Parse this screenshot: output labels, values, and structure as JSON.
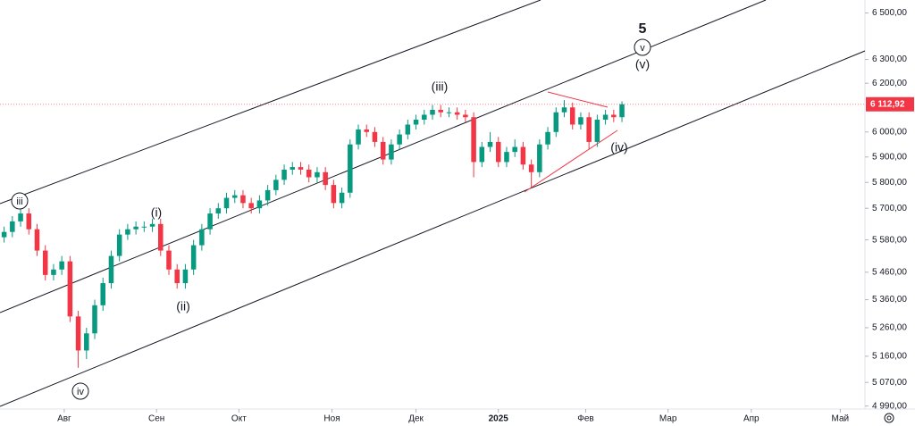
{
  "chart_data": {
    "type": "candlestick",
    "up_color": "#089981",
    "down_color": "#f23645",
    "log_scale": true,
    "open": [
      5590,
      5610,
      5650,
      5680,
      5620,
      5540,
      5450,
      5470,
      5500,
      5300,
      5180,
      5240,
      5340,
      5420,
      5520,
      5600,
      5620,
      5630,
      5630,
      5640,
      5540,
      5470,
      5420,
      5470,
      5560,
      5620,
      5680,
      5700,
      5740,
      5750,
      5720,
      5700,
      5730,
      5770,
      5810,
      5850,
      5860,
      5850,
      5820,
      5840,
      5790,
      5720,
      5760,
      5950,
      6010,
      6000,
      5960,
      5890,
      5950,
      5990,
      6030,
      6050,
      6070,
      6090,
      6080,
      6080,
      6070,
      6060,
      5880,
      5940,
      5960,
      5880,
      5920,
      5940,
      5870,
      5840,
      5950,
      6000,
      6080,
      6100,
      6030,
      6060,
      5960,
      6050,
      6070,
      6060
    ],
    "high": [
      5630,
      5670,
      5700,
      5700,
      5640,
      5560,
      5490,
      5520,
      5520,
      5320,
      5260,
      5360,
      5440,
      5540,
      5620,
      5640,
      5650,
      5650,
      5660,
      5660,
      5560,
      5490,
      5490,
      5580,
      5640,
      5700,
      5720,
      5760,
      5770,
      5770,
      5740,
      5750,
      5790,
      5830,
      5870,
      5880,
      5880,
      5870,
      5860,
      5860,
      5810,
      5780,
      5970,
      6030,
      6030,
      6020,
      5980,
      5970,
      6010,
      6050,
      6070,
      6090,
      6110,
      6110,
      6100,
      6100,
      6090,
      6080,
      5960,
      6000,
      5980,
      5940,
      5970,
      5960,
      5890,
      5970,
      6020,
      6100,
      6130,
      6120,
      6080,
      6080,
      6070,
      6090,
      6090,
      6125
    ],
    "low": [
      5570,
      5590,
      5630,
      5600,
      5520,
      5430,
      5430,
      5450,
      5280,
      5120,
      5150,
      5220,
      5320,
      5400,
      5500,
      5580,
      5600,
      5610,
      5610,
      5520,
      5450,
      5400,
      5400,
      5450,
      5540,
      5600,
      5660,
      5680,
      5720,
      5700,
      5680,
      5680,
      5710,
      5750,
      5790,
      5830,
      5830,
      5800,
      5800,
      5770,
      5700,
      5700,
      5740,
      5930,
      5980,
      5940,
      5870,
      5870,
      5930,
      5970,
      6010,
      6030,
      6050,
      6060,
      6060,
      6050,
      6040,
      5820,
      5860,
      5920,
      5860,
      5860,
      5900,
      5850,
      5780,
      5820,
      5930,
      5980,
      6060,
      6010,
      6010,
      5930,
      5940,
      6030,
      6040,
      6040
    ],
    "close": [
      5610,
      5650,
      5680,
      5620,
      5540,
      5450,
      5470,
      5500,
      5300,
      5180,
      5240,
      5340,
      5420,
      5520,
      5600,
      5620,
      5630,
      5630,
      5640,
      5540,
      5470,
      5420,
      5470,
      5560,
      5620,
      5680,
      5700,
      5740,
      5750,
      5720,
      5700,
      5730,
      5770,
      5810,
      5850,
      5860,
      5850,
      5820,
      5840,
      5790,
      5720,
      5760,
      5950,
      6010,
      6000,
      5960,
      5890,
      5950,
      5990,
      6030,
      6050,
      6070,
      6090,
      6080,
      6080,
      6070,
      6060,
      5880,
      5940,
      5960,
      5880,
      5920,
      5940,
      5870,
      5840,
      5950,
      6000,
      6080,
      6100,
      6030,
      6060,
      5960,
      6050,
      6070,
      6060,
      6113
    ],
    "xlim": [
      0,
      105
    ],
    "xticks": [
      {
        "value": 7.8,
        "label": "Авг"
      },
      {
        "value": 19,
        "label": "Сен"
      },
      {
        "value": 29,
        "label": "Окт"
      },
      {
        "value": 40.3,
        "label": "Ноя"
      },
      {
        "value": 50.5,
        "label": "Дек"
      },
      {
        "value": 60.5,
        "label": "2025"
      },
      {
        "value": 71.1,
        "label": "Фев"
      },
      {
        "value": 81.1,
        "label": "Мар"
      },
      {
        "value": 91.2,
        "label": "Апр"
      },
      {
        "value": 102,
        "label": "Май"
      }
    ],
    "ylim": [
      4980,
      6557
    ],
    "yticks": [
      {
        "value": 6500,
        "label": "6 500,00"
      },
      {
        "value": 6300,
        "label": "6 300,00"
      },
      {
        "value": 6200,
        "label": "6 200,00"
      },
      {
        "value": 6000,
        "label": "6 000,00"
      },
      {
        "value": 5900,
        "label": "5 900,00"
      },
      {
        "value": 5800,
        "label": "5 800,00"
      },
      {
        "value": 5700,
        "label": "5 700,00"
      },
      {
        "value": 5580,
        "label": "5 580,00"
      },
      {
        "value": 5460,
        "label": "5 460,00"
      },
      {
        "value": 5360,
        "label": "5 360,00"
      },
      {
        "value": 5260,
        "label": "5 260,00"
      },
      {
        "value": 5160,
        "label": "5 160,00"
      },
      {
        "value": 5070,
        "label": "5 070,00"
      },
      {
        "value": 4990,
        "label": "4 990,00"
      }
    ],
    "last_price": {
      "value": 6112.92,
      "label": "6 112,92"
    },
    "annotations": [
      "iii",
      "iv",
      "(i)",
      "(ii)",
      "(iii)",
      "(iv)",
      "(v)",
      "v",
      "5"
    ]
  }
}
